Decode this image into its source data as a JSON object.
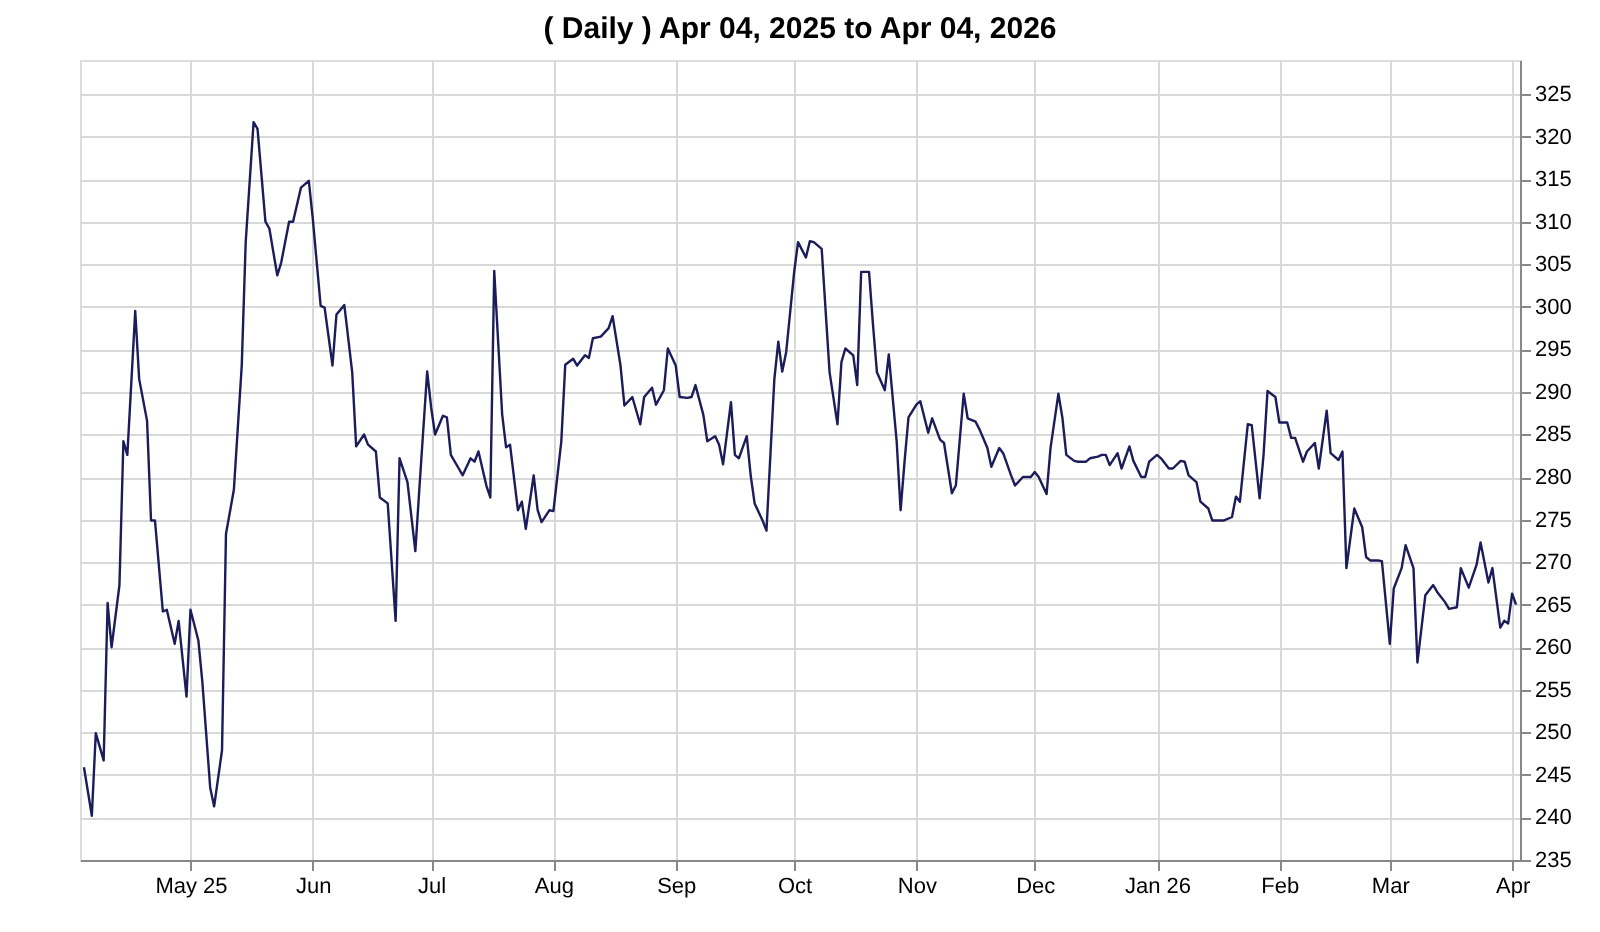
{
  "chart_data": {
    "type": "line",
    "title": "( Daily ) Apr 04, 2025 to Apr 04, 2026",
    "x": [
      "2025-04-04",
      "2025-04-06",
      "2025-04-07",
      "2025-04-09",
      "2025-04-10",
      "2025-04-11",
      "2025-04-13",
      "2025-04-14",
      "2025-04-15",
      "2025-04-17",
      "2025-04-18",
      "2025-04-20",
      "2025-04-21",
      "2025-04-22",
      "2025-04-24",
      "2025-04-25",
      "2025-04-27",
      "2025-04-28",
      "2025-04-30",
      "2025-05-01",
      "2025-05-03",
      "2025-05-04",
      "2025-05-06",
      "2025-05-07",
      "2025-05-09",
      "2025-05-10",
      "2025-05-12",
      "2025-05-14",
      "2025-05-15",
      "2025-05-17",
      "2025-05-18",
      "2025-05-20",
      "2025-05-21",
      "2025-05-23",
      "2025-05-24",
      "2025-05-26",
      "2025-05-27",
      "2025-05-29",
      "2025-05-31",
      "2025-06-01",
      "2025-06-03",
      "2025-06-04",
      "2025-06-06",
      "2025-06-07",
      "2025-06-09",
      "2025-06-11",
      "2025-06-12",
      "2025-06-14",
      "2025-06-15",
      "2025-06-17",
      "2025-06-18",
      "2025-06-20",
      "2025-06-22",
      "2025-06-23",
      "2025-06-25",
      "2025-06-27",
      "2025-06-28",
      "2025-06-30",
      "2025-07-01",
      "2025-07-02",
      "2025-07-04",
      "2025-07-05",
      "2025-07-06",
      "2025-07-08",
      "2025-07-09",
      "2025-07-11",
      "2025-07-12",
      "2025-07-13",
      "2025-07-15",
      "2025-07-16",
      "2025-07-17",
      "2025-07-19",
      "2025-07-20",
      "2025-07-21",
      "2025-07-23",
      "2025-07-24",
      "2025-07-25",
      "2025-07-27",
      "2025-07-28",
      "2025-07-29",
      "2025-07-31",
      "2025-08-01",
      "2025-08-03",
      "2025-08-04",
      "2025-08-06",
      "2025-08-07",
      "2025-08-09",
      "2025-08-10",
      "2025-08-11",
      "2025-08-13",
      "2025-08-15",
      "2025-08-16",
      "2025-08-18",
      "2025-08-19",
      "2025-08-21",
      "2025-08-23",
      "2025-08-24",
      "2025-08-26",
      "2025-08-27",
      "2025-08-29",
      "2025-08-30",
      "2025-09-01",
      "2025-09-02",
      "2025-09-04",
      "2025-09-05",
      "2025-09-06",
      "2025-09-08",
      "2025-09-09",
      "2025-09-11",
      "2025-09-12",
      "2025-09-13",
      "2025-09-15",
      "2025-09-16",
      "2025-09-17",
      "2025-09-19",
      "2025-09-20",
      "2025-09-21",
      "2025-09-23",
      "2025-09-24",
      "2025-09-26",
      "2025-09-27",
      "2025-09-28",
      "2025-09-29",
      "2025-10-01",
      "2025-10-02",
      "2025-10-04",
      "2025-10-05",
      "2025-10-06",
      "2025-10-08",
      "2025-10-09",
      "2025-10-10",
      "2025-10-12",
      "2025-10-13",
      "2025-10-14",
      "2025-10-16",
      "2025-10-17",
      "2025-10-18",
      "2025-10-20",
      "2025-10-21",
      "2025-10-22",
      "2025-10-24",
      "2025-10-25",
      "2025-10-27",
      "2025-10-28",
      "2025-10-29",
      "2025-10-30",
      "2025-11-01",
      "2025-11-02",
      "2025-11-04",
      "2025-11-05",
      "2025-11-07",
      "2025-11-08",
      "2025-11-10",
      "2025-11-11",
      "2025-11-13",
      "2025-11-14",
      "2025-11-16",
      "2025-11-17",
      "2025-11-19",
      "2025-11-20",
      "2025-11-22",
      "2025-11-23",
      "2025-11-25",
      "2025-11-26",
      "2025-11-28",
      "2025-11-30",
      "2025-12-01",
      "2025-12-02",
      "2025-12-04",
      "2025-12-05",
      "2025-12-07",
      "2025-12-08",
      "2025-12-09",
      "2025-12-11",
      "2025-12-12",
      "2025-12-14",
      "2025-12-15",
      "2025-12-17",
      "2025-12-18",
      "2025-12-19",
      "2025-12-20",
      "2025-12-22",
      "2025-12-23",
      "2025-12-25",
      "2025-12-26",
      "2025-12-28",
      "2025-12-29",
      "2025-12-30",
      "2026-01-01",
      "2026-01-02",
      "2026-01-04",
      "2026-01-05",
      "2026-01-07",
      "2026-01-08",
      "2026-01-09",
      "2026-01-11",
      "2026-01-12",
      "2026-01-14",
      "2026-01-15",
      "2026-01-17",
      "2026-01-18",
      "2026-01-20",
      "2026-01-21",
      "2026-01-22",
      "2026-01-24",
      "2026-01-25",
      "2026-01-27",
      "2026-01-28",
      "2026-01-29",
      "2026-01-31",
      "2026-02-01",
      "2026-02-03",
      "2026-02-04",
      "2026-02-05",
      "2026-02-07",
      "2026-02-08",
      "2026-02-10",
      "2026-02-11",
      "2026-02-13",
      "2026-02-14",
      "2026-02-16",
      "2026-02-17",
      "2026-02-18",
      "2026-02-20",
      "2026-02-22",
      "2026-02-23",
      "2026-02-24",
      "2026-02-26",
      "2026-02-27",
      "2026-03-01",
      "2026-03-02",
      "2026-03-04",
      "2026-03-05",
      "2026-03-07",
      "2026-03-08",
      "2026-03-10",
      "2026-03-12",
      "2026-03-13",
      "2026-03-15",
      "2026-03-16",
      "2026-03-18",
      "2026-03-19",
      "2026-03-21",
      "2026-03-23",
      "2026-03-24",
      "2026-03-26",
      "2026-03-27",
      "2026-03-29",
      "2026-03-30",
      "2026-03-31",
      "2026-04-01",
      "2026-04-02"
    ],
    "series": [
      {
        "color": "#1c1c5a",
        "values": [
          245.9,
          240.2,
          249.9,
          246.7,
          265.2,
          260,
          267.3,
          284.2,
          282.6,
          299.5,
          291.5,
          286.6,
          274.9,
          274.9,
          264.2,
          264.4,
          260.4,
          263.1,
          254.2,
          264.4,
          260.8,
          256,
          243.5,
          241.3,
          247.9,
          273.3,
          278.5,
          293.1,
          307.6,
          321.7,
          320.9,
          310,
          309.2,
          303.7,
          305.2,
          310,
          310,
          314,
          314.8,
          310.4,
          300.1,
          299.9,
          293.1,
          299.1,
          300.2,
          292.3,
          283.6,
          285,
          283.8,
          283,
          277.6,
          276.9,
          263.1,
          282.2,
          279.4,
          271.3,
          278.5,
          292.4,
          288.2,
          285,
          287.2,
          287,
          282.6,
          281,
          280.2,
          282.2,
          281.8,
          283,
          279,
          277.6,
          304.2,
          287.4,
          283.5,
          283.8,
          276.1,
          277.1,
          273.9,
          280.2,
          276.1,
          274.7,
          276.1,
          276,
          284.2,
          293.2,
          293.9,
          293.1,
          294.3,
          294,
          296.3,
          296.5,
          297.5,
          298.9,
          293.1,
          288.4,
          289.4,
          286.2,
          289.4,
          290.5,
          288.5,
          290.2,
          295.1,
          293.1,
          289.4,
          289.3,
          289.4,
          290.8,
          287.3,
          284.2,
          284.8,
          283.8,
          281.5,
          288.8,
          282.6,
          282.2,
          284.8,
          280.2,
          276.9,
          274.9,
          273.7,
          291.5,
          295.9,
          292.4,
          294.7,
          304,
          307.6,
          305.8,
          307.7,
          307.6,
          306.8,
          299.5,
          292.3,
          286.2,
          293.5,
          295.1,
          294.3,
          290.8,
          304.1,
          304.1,
          297.9,
          292.3,
          290.2,
          294.4,
          284.2,
          276.1,
          281.8,
          287,
          288.5,
          288.9,
          285.2,
          286.9,
          284.4,
          284,
          278.1,
          279,
          289.8,
          286.9,
          286.5,
          285.6,
          283.4,
          281.2,
          283.4,
          282.8,
          280.2,
          279,
          280,
          280,
          280.6,
          280,
          278,
          283.4,
          289.8,
          287,
          282.6,
          281.9,
          281.8,
          281.8,
          282.2,
          282.4,
          282.6,
          282.6,
          281.4,
          282.8,
          281,
          283.6,
          281.9,
          280,
          280,
          281.8,
          282.6,
          282.2,
          281,
          281,
          281.9,
          281.8,
          280.2,
          279.4,
          277.1,
          276.3,
          274.9,
          274.9,
          274.9,
          275.3,
          277.7,
          277.1,
          286.2,
          286.1,
          277.5,
          282.6,
          290.1,
          289.4,
          286.4,
          286.4,
          284.6,
          284.6,
          281.8,
          283,
          284,
          281,
          287.8,
          282.8,
          282,
          283,
          269.3,
          276.3,
          274.1,
          270.6,
          270.2,
          270.2,
          270.1,
          260.4,
          266.9,
          269.3,
          272,
          269.3,
          258.2,
          266.1,
          267.3,
          266.5,
          265.3,
          264.5,
          264.7,
          269.3,
          267,
          269.7,
          272.3,
          267.6,
          269.3,
          262.3,
          263.1,
          262.8,
          266.3,
          265
        ]
      }
    ],
    "xlim": [
      "2025-04-03",
      "2026-04-03"
    ],
    "xticks": [
      {
        "value": "2025-05-01",
        "label": "May 25"
      },
      {
        "value": "2025-06-01",
        "label": "Jun"
      },
      {
        "value": "2025-07-01",
        "label": "Jul"
      },
      {
        "value": "2025-08-01",
        "label": "Aug"
      },
      {
        "value": "2025-09-01",
        "label": "Sep"
      },
      {
        "value": "2025-10-01",
        "label": "Oct"
      },
      {
        "value": "2025-11-01",
        "label": "Nov"
      },
      {
        "value": "2025-12-01",
        "label": "Dec"
      },
      {
        "value": "2026-01-01",
        "label": "Jan 26"
      },
      {
        "value": "2026-02-01",
        "label": "Feb"
      },
      {
        "value": "2026-03-01",
        "label": "Mar"
      },
      {
        "value": "2026-04-01",
        "label": "Apr"
      }
    ],
    "ylim": [
      235,
      329
    ],
    "yticks": [
      235,
      240,
      245,
      250,
      255,
      260,
      265,
      270,
      275,
      280,
      285,
      290,
      295,
      300,
      305,
      310,
      315,
      320,
      325
    ],
    "grid": true,
    "marker": "none",
    "line_style": "solid"
  }
}
